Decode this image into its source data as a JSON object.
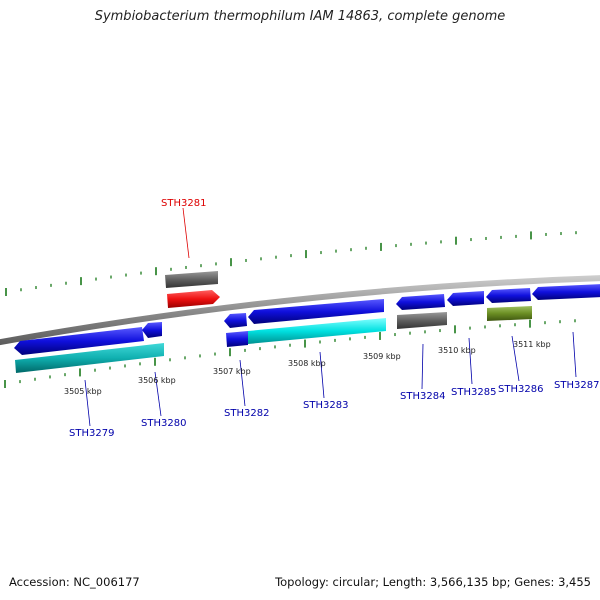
{
  "title": "Symbiobacterium thermophilum IAM 14863, complete genome",
  "footer": {
    "accession_prefix": "Accession:",
    "accession": "NC_006177",
    "topology_prefix": "Topology:",
    "topology": "circular",
    "length_prefix": "Length:",
    "length": "3,566,135 bp",
    "genes_prefix": "Genes:",
    "genes": "3,455"
  },
  "colors": {
    "backbone": "#8c8c8c",
    "forward_strand": "#1010dd",
    "reverse_strand": "#1010dd",
    "highlight": "#ee1111",
    "cyan": "#00dede",
    "teal": "#10b8b8",
    "grey_feature": "#666666",
    "olive": "#6b8e23",
    "tick": "#1a7a1a",
    "label_default": "#0000aa",
    "label_highlight": "#dd0000"
  },
  "kbp_labels": [
    "3505 kbp",
    "3506 kbp",
    "3507 kbp",
    "3508 kbp",
    "3509 kbp",
    "3510 kbp",
    "3511 kbp"
  ],
  "genes": [
    {
      "id": "STH3279",
      "color": "label_default"
    },
    {
      "id": "STH3280",
      "color": "label_default"
    },
    {
      "id": "STH3281",
      "color": "label_highlight"
    },
    {
      "id": "STH3282",
      "color": "label_default"
    },
    {
      "id": "STH3283",
      "color": "label_default"
    },
    {
      "id": "STH3284",
      "color": "label_default"
    },
    {
      "id": "STH3285",
      "color": "label_default"
    },
    {
      "id": "STH3286",
      "color": "label_default"
    },
    {
      "id": "STH3287",
      "color": "label_default"
    }
  ]
}
